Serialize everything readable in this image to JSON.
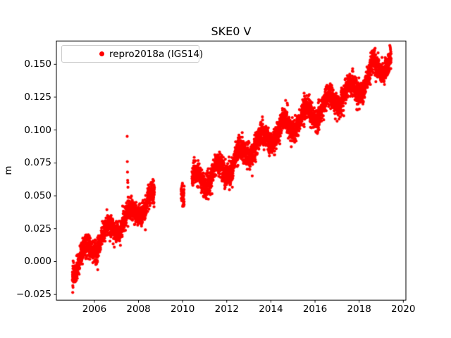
{
  "figure": {
    "title": "SKE0 V",
    "background": "#ffffff"
  },
  "chart_data": {
    "type": "scatter",
    "title": "SKE0 V",
    "xlabel": "",
    "ylabel": "m",
    "xlim": [
      2004.275,
      2020.12
    ],
    "ylim": [
      -0.0293,
      0.1677
    ],
    "x_ticks": [
      2006,
      2008,
      2010,
      2012,
      2014,
      2016,
      2018,
      2020
    ],
    "y_ticks": [
      -0.025,
      0.0,
      0.025,
      0.05,
      0.075,
      0.1,
      0.125,
      0.15
    ],
    "grid": false,
    "axis_color": "#000000",
    "legend": {
      "position": "upper left",
      "entries": [
        {
          "label": "repro2018a (IGS14)",
          "marker": "circle",
          "color": "#ff0000"
        }
      ]
    },
    "series": [
      {
        "name": "repro2018a (IGS14)",
        "color": "#ff0000",
        "marker": "circle",
        "marker_radius_px": 2.1,
        "sampling": "daily",
        "model": {
          "seed": 42,
          "t_start": 2005.0,
          "t_end": 2019.45,
          "dt": 0.00274,
          "trend_anchors": [
            [
              2005.0,
              -0.004
            ],
            [
              2005.5,
              0.004
            ],
            [
              2006.0,
              0.013
            ],
            [
              2006.5,
              0.02
            ],
            [
              2007.0,
              0.027
            ],
            [
              2007.5,
              0.032
            ],
            [
              2008.0,
              0.04
            ],
            [
              2008.72,
              0.047
            ],
            [
              2009.93,
              0.055
            ],
            [
              2010.42,
              0.06
            ],
            [
              2011.0,
              0.064
            ],
            [
              2012.0,
              0.071
            ],
            [
              2013.0,
              0.085
            ],
            [
              2014.0,
              0.096
            ],
            [
              2015.0,
              0.105
            ],
            [
              2016.0,
              0.114
            ],
            [
              2017.0,
              0.124
            ],
            [
              2018.0,
              0.133
            ],
            [
              2018.45,
              0.139
            ],
            [
              2018.6,
              0.147
            ],
            [
              2019.0,
              0.149
            ],
            [
              2019.45,
              0.152
            ]
          ],
          "seasonal_amp": 0.0065,
          "seasonal_phase": 0.08,
          "noise_sigma": 0.0042,
          "low_outlier_rate": 0.013,
          "low_outlier_min": 0.003,
          "low_outlier_max": 0.012,
          "high_outlier_rate": 0.004,
          "high_outlier_min": 0.003,
          "high_outlier_max": 0.008,
          "gaps": [
            [
              2008.72,
              2009.93
            ],
            [
              2010.07,
              2010.42
            ]
          ]
        },
        "outlier_points": [
          [
            2007.485,
            0.0952
          ],
          [
            2007.492,
            0.076
          ],
          [
            2007.499,
            0.068
          ],
          [
            2007.506,
            0.0618
          ],
          [
            2007.513,
            0.0601
          ],
          [
            2007.52,
            0.0565
          ],
          [
            2007.527,
            0.049
          ],
          [
            2005.03,
            -0.0196
          ],
          [
            2005.05,
            -0.0155
          ],
          [
            2005.07,
            -0.013
          ],
          [
            2006.15,
            -0.0062
          ]
        ]
      }
    ]
  },
  "layout_note": "single matplotlib-style axes, legend upper-left, no grid"
}
